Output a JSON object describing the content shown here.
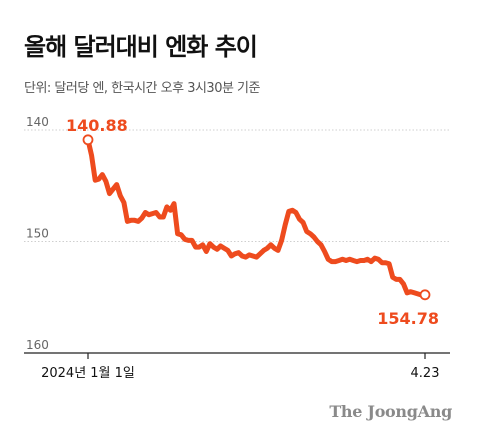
{
  "header": {
    "title": "올해 달러대비 엔화 추이",
    "subtitle": "단위: 달러당 엔, 한국시간 오후 3시30분 기준"
  },
  "brand": {
    "name": "The JoongAng"
  },
  "colors": {
    "line": "#ee4b1e",
    "axis": "#222222",
    "grid": "#cfcfcf",
    "label": "#666666"
  },
  "chart_data": {
    "type": "line",
    "title": "올해 달러대비 엔화 추이",
    "subtitle": "단위: 달러당 엔, 한국시간 오후 3시30분 기준",
    "xlabel": "",
    "ylabel": "",
    "y_inverted": true,
    "ylim": [
      140,
      160
    ],
    "y_ticks": [
      140,
      150,
      160
    ],
    "x_tick_labels": [
      "2024년 1월 1일",
      "4.23"
    ],
    "grid": "horizontal",
    "annotations": {
      "start": "140.88",
      "end": "154.78"
    },
    "series": [
      {
        "values": [
          140.88,
          142.3,
          144.5,
          144.4,
          144.0,
          144.6,
          145.7,
          145.3,
          144.9,
          145.9,
          146.5,
          148.2,
          148.1,
          148.1,
          148.2,
          147.9,
          147.4,
          147.6,
          147.5,
          147.4,
          147.8,
          147.8,
          146.9,
          147.2,
          146.6,
          149.3,
          149.4,
          149.8,
          149.9,
          149.9,
          150.5,
          150.5,
          150.3,
          150.9,
          150.2,
          150.5,
          150.7,
          150.4,
          150.6,
          150.8,
          151.3,
          151.1,
          151.0,
          151.3,
          151.4,
          151.2,
          151.3,
          151.4,
          151.1,
          150.8,
          150.6,
          150.3,
          150.6,
          150.8,
          149.9,
          148.5,
          147.3,
          147.2,
          147.4,
          148.0,
          148.3,
          149.1,
          149.3,
          149.6,
          150.0,
          150.3,
          150.9,
          151.6,
          151.8,
          151.8,
          151.7,
          151.6,
          151.7,
          151.6,
          151.7,
          151.8,
          151.7,
          151.7,
          151.6,
          151.8,
          151.5,
          151.6,
          151.9,
          151.9,
          152.0,
          153.2,
          153.4,
          153.4,
          153.8,
          154.6,
          154.5,
          154.6,
          154.7,
          154.8,
          154.78
        ]
      }
    ]
  }
}
